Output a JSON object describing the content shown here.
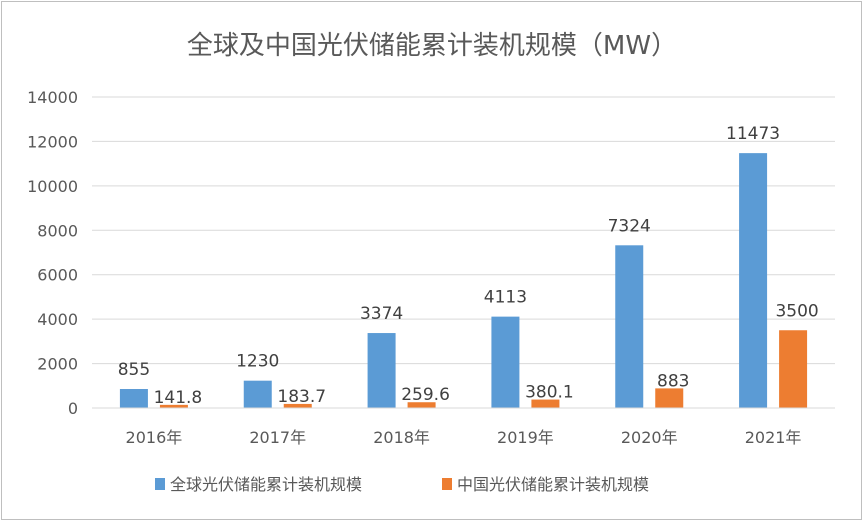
{
  "chart_data": {
    "type": "bar",
    "title": "全球及中国光伏储能累计装机规模（MW）",
    "categories": [
      "2016年",
      "2017年",
      "2018年",
      "2019年",
      "2020年",
      "2021年"
    ],
    "series": [
      {
        "name": "全球光伏储能累计装机规模",
        "values": [
          855,
          1230,
          3374,
          4113,
          7324,
          11473
        ],
        "color": "#5b9bd5"
      },
      {
        "name": "中国光伏储能累计装机规模",
        "values": [
          141.8,
          183.7,
          259.6,
          380.1,
          883,
          3500
        ],
        "color": "#ed7d31"
      }
    ],
    "data_labels": [
      [
        "855",
        "1230",
        "3374",
        "4113",
        "7324",
        "11473"
      ],
      [
        "141.8",
        "183.7",
        "259.6",
        "380.1",
        "883",
        "3500"
      ]
    ],
    "yticks": [
      "0",
      "2000",
      "4000",
      "6000",
      "8000",
      "10000",
      "12000",
      "14000"
    ],
    "ylim": [
      0,
      14000
    ],
    "grid": true,
    "legend_position": "bottom",
    "gridline_color": "#d9d9d9"
  }
}
